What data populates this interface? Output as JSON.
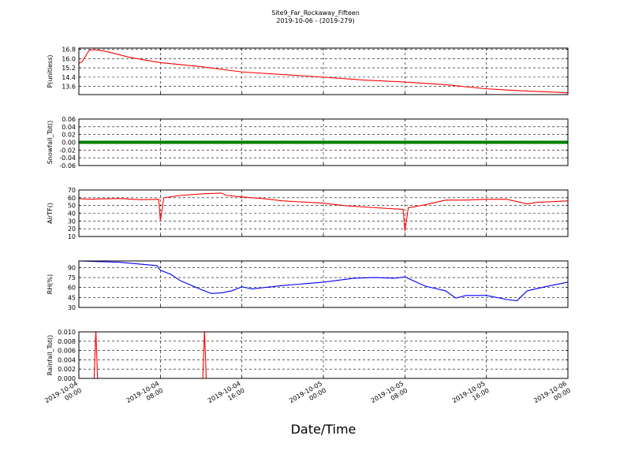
{
  "title": "Site9_Far_Rockaway_Fifteen",
  "subtitle": "2019-10-06 - (2019-279)",
  "xlabel": "Date/Time",
  "x_ticks": [
    {
      "line1": "2019-10-04",
      "line2": "00:00"
    },
    {
      "line1": "2019-10-04",
      "line2": "08:00"
    },
    {
      "line1": "2019-10-04",
      "line2": "16:00"
    },
    {
      "line1": "2019-10-05",
      "line2": "00:00"
    },
    {
      "line1": "2019-10-05",
      "line2": "08:00"
    },
    {
      "line1": "2019-10-05",
      "line2": "16:00"
    },
    {
      "line1": "2019-10-06",
      "line2": "00:00"
    }
  ],
  "chart_data": [
    {
      "type": "line",
      "ylabel": "P(unitless)",
      "color": "#ff0000",
      "ylim": [
        12.9,
        16.9
      ],
      "yticks": [
        "13.6",
        "14.4",
        "15.2",
        "16.0",
        "16.8"
      ],
      "series": [
        {
          "points": [
            [
              "2019-10-04 00:00",
              15.6
            ],
            [
              "2019-10-04 00:20",
              15.75
            ],
            [
              "2019-10-04 01:00",
              16.7
            ],
            [
              "2019-10-04 01:30",
              16.78
            ],
            [
              "2019-10-04 03:00",
              16.55
            ],
            [
              "2019-10-04 05:00",
              16.1
            ],
            [
              "2019-10-04 08:00",
              15.65
            ],
            [
              "2019-10-04 12:00",
              15.3
            ],
            [
              "2019-10-04 16:00",
              14.85
            ],
            [
              "2019-10-05 00:00",
              14.4
            ],
            [
              "2019-10-05 04:00",
              14.15
            ],
            [
              "2019-10-05 08:00",
              13.98
            ],
            [
              "2019-10-05 12:00",
              13.75
            ],
            [
              "2019-10-05 16:00",
              13.4
            ],
            [
              "2019-10-05 20:00",
              13.2
            ],
            [
              "2019-10-05 23:00",
              13.1
            ],
            [
              "2019-10-06 00:00",
              13.05
            ]
          ]
        }
      ]
    },
    {
      "type": "scatter",
      "ylabel": "Snowfall_Tot()",
      "color": "#008000",
      "ylim": [
        -0.06,
        0.06
      ],
      "yticks": [
        "-0.06",
        "-0.04",
        "-0.02",
        "0.00",
        "0.02",
        "0.04",
        "0.06"
      ],
      "series": [
        {
          "constant_value": 0.0,
          "interval_minutes": 10
        }
      ]
    },
    {
      "type": "line",
      "ylabel": "AirTF()",
      "color": "#ff0000",
      "ylim": [
        10,
        70
      ],
      "yticks": [
        "10",
        "20",
        "30",
        "40",
        "50",
        "60",
        "70"
      ],
      "series": [
        {
          "points": [
            [
              "2019-10-04 00:00",
              59
            ],
            [
              "2019-10-04 01:00",
              58
            ],
            [
              "2019-10-04 02:00",
              58.5
            ],
            [
              "2019-10-04 04:00",
              59
            ],
            [
              "2019-10-04 06:00",
              57.5
            ],
            [
              "2019-10-04 07:50",
              58
            ],
            [
              "2019-10-04 08:00",
              30
            ],
            [
              "2019-10-04 08:20",
              60
            ],
            [
              "2019-10-04 10:00",
              63
            ],
            [
              "2019-10-04 12:00",
              65
            ],
            [
              "2019-10-04 14:00",
              66
            ],
            [
              "2019-10-04 14:30",
              63
            ],
            [
              "2019-10-04 16:00",
              61
            ],
            [
              "2019-10-04 18:00",
              59
            ],
            [
              "2019-10-04 20:00",
              56
            ],
            [
              "2019-10-05 00:00",
              53
            ],
            [
              "2019-10-05 02:00",
              50
            ],
            [
              "2019-10-05 04:00",
              48
            ],
            [
              "2019-10-05 07:50",
              45
            ],
            [
              "2019-10-05 08:00",
              17
            ],
            [
              "2019-10-05 08:20",
              47
            ],
            [
              "2019-10-05 10:00",
              51
            ],
            [
              "2019-10-05 12:00",
              57
            ],
            [
              "2019-10-05 14:00",
              57
            ],
            [
              "2019-10-05 16:00",
              58
            ],
            [
              "2019-10-05 18:00",
              58
            ],
            [
              "2019-10-05 20:00",
              52
            ],
            [
              "2019-10-05 21:00",
              54
            ],
            [
              "2019-10-06 00:00",
              56
            ]
          ]
        }
      ]
    },
    {
      "type": "line",
      "ylabel": "RH(%)",
      "color": "#0000ff",
      "ylim": [
        30,
        100
      ],
      "yticks": [
        "30",
        "45",
        "60",
        "75",
        "90"
      ],
      "series": [
        {
          "points": [
            [
              "2019-10-04 00:00",
              100
            ],
            [
              "2019-10-04 04:00",
              98
            ],
            [
              "2019-10-04 07:40",
              93
            ],
            [
              "2019-10-04 08:00",
              86
            ],
            [
              "2019-10-04 09:00",
              80
            ],
            [
              "2019-10-04 10:00",
              70
            ],
            [
              "2019-10-04 12:00",
              57
            ],
            [
              "2019-10-04 13:00",
              51
            ],
            [
              "2019-10-04 14:00",
              52
            ],
            [
              "2019-10-04 15:00",
              55
            ],
            [
              "2019-10-04 16:00",
              61
            ],
            [
              "2019-10-04 17:00",
              58
            ],
            [
              "2019-10-04 20:00",
              63
            ],
            [
              "2019-10-05 00:00",
              68
            ],
            [
              "2019-10-05 03:00",
              74
            ],
            [
              "2019-10-05 05:00",
              75
            ],
            [
              "2019-10-05 07:00",
              74
            ],
            [
              "2019-10-05 08:00",
              76
            ],
            [
              "2019-10-05 10:00",
              62
            ],
            [
              "2019-10-05 12:00",
              55
            ],
            [
              "2019-10-05 13:00",
              44
            ],
            [
              "2019-10-05 14:00",
              48
            ],
            [
              "2019-10-05 16:00",
              48
            ],
            [
              "2019-10-05 18:00",
              42
            ],
            [
              "2019-10-05 19:00",
              40
            ],
            [
              "2019-10-05 20:00",
              55
            ],
            [
              "2019-10-05 22:00",
              62
            ],
            [
              "2019-10-06 00:00",
              68
            ]
          ]
        }
      ]
    },
    {
      "type": "line",
      "ylabel": "Rainfall_Tot()",
      "color": "#ff0000",
      "ylim": [
        0.0,
        0.01
      ],
      "yticks": [
        "0.000",
        "0.002",
        "0.004",
        "0.006",
        "0.008",
        "0.010"
      ],
      "series": [
        {
          "points": [
            [
              "2019-10-04 00:00",
              0
            ],
            [
              "2019-10-04 01:30",
              0
            ],
            [
              "2019-10-04 01:40",
              0.0105
            ],
            [
              "2019-10-04 01:50",
              0
            ],
            [
              "2019-10-04 12:10",
              0
            ],
            [
              "2019-10-04 12:20",
              0.0105
            ],
            [
              "2019-10-04 12:30",
              0
            ],
            [
              "2019-10-06 00:00",
              0
            ]
          ]
        }
      ]
    }
  ]
}
